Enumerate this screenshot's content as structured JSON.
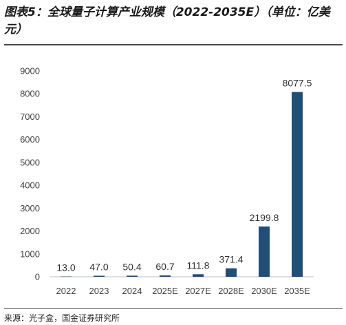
{
  "title": "图表5：全球量子计算产业规模（2022-2035E）（单位：亿美元）",
  "source": "来源：光子盒，国金证券研究所",
  "chart_data": {
    "type": "bar",
    "categories": [
      "2022",
      "2023",
      "2024",
      "2025E",
      "2027E",
      "2028E",
      "2030E",
      "2035E"
    ],
    "values": [
      13.0,
      47.0,
      50.4,
      60.7,
      111.8,
      371.4,
      2199.8,
      8077.5
    ],
    "data_labels": [
      "13.0",
      "47.0",
      "50.4",
      "60.7",
      "111.8",
      "371.4",
      "2199.8",
      "8077.5"
    ],
    "ylim": [
      0,
      9000
    ],
    "yticks": [
      0,
      1000,
      2000,
      3000,
      4000,
      5000,
      6000,
      7000,
      8000,
      9000
    ],
    "bar_color": "#1f4e79",
    "grid": false,
    "legend": false
  }
}
